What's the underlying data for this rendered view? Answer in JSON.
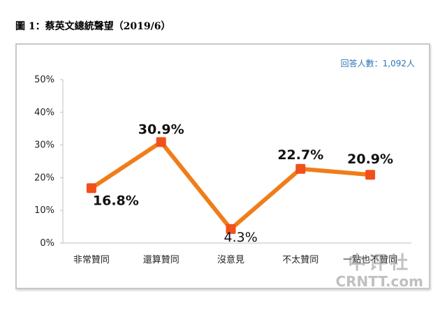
{
  "figure_title": "圖 1：蔡英文總統聲望（2019/6）",
  "respondents_label": "回答人數：1,092人",
  "watermark": {
    "line1": "中评社",
    "line2": "CRNTT.com"
  },
  "colors": {
    "line": "#f07d1a",
    "marker": "#f0501a",
    "axis": "#bfbfbf",
    "note": "#2e75b6"
  },
  "chart_data": {
    "type": "line",
    "categories": [
      "非常贊同",
      "還算贊同",
      "沒意見",
      "不太贊同",
      "一點也不贊同"
    ],
    "series": [
      {
        "values": [
          16.8,
          30.9,
          4.3,
          22.7,
          20.9
        ]
      }
    ],
    "data_labels": [
      "16.8%",
      "30.9%",
      "4.3%",
      "22.7%",
      "20.9%"
    ],
    "y_ticks": [
      "0%",
      "10%",
      "20%",
      "30%",
      "40%",
      "50%"
    ],
    "ylim": [
      0,
      50
    ],
    "grid": false
  }
}
